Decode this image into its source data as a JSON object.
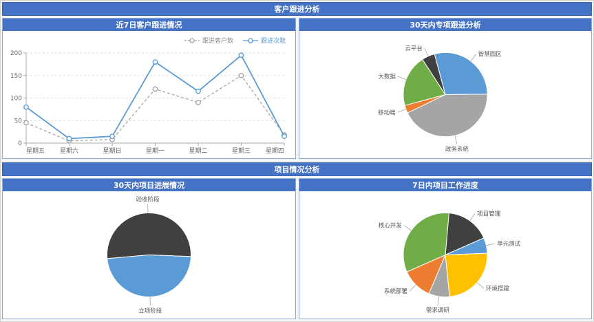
{
  "colors": {
    "accent": "#4472c4",
    "panel_border": "#8fa8d8",
    "axis": "#aaaaaa",
    "grid": "#dddddd",
    "label_text": "#555555"
  },
  "sections": {
    "customer": {
      "title": "客户跟进分析"
    },
    "project": {
      "title": "项目情况分析"
    }
  },
  "panels": {
    "line": {
      "title": "近7日客户跟进情况"
    },
    "special_pie": {
      "title": "30天内专项跟进分析"
    },
    "progress_pie": {
      "title": "30天内项目进展情况"
    },
    "work_pie": {
      "title": "7日内项目工作进度"
    }
  },
  "chart_data": [
    {
      "id": "followup-line",
      "type": "line",
      "title": "近7日客户跟进情况",
      "categories": [
        "星期五",
        "星期六",
        "星期日",
        "星期一",
        "星期二",
        "星期三",
        "星期四"
      ],
      "series": [
        {
          "name": "跟进客户数",
          "values": [
            45,
            5,
            8,
            120,
            90,
            150,
            18
          ],
          "color": "#a5a5a5",
          "dashed": true,
          "label_color": "#8c8c8c"
        },
        {
          "name": "跟进次数",
          "values": [
            80,
            10,
            15,
            180,
            115,
            195,
            15
          ],
          "color": "#5b9bd5",
          "dashed": false,
          "label_color": "#5b9bd5"
        }
      ],
      "xlabel": "",
      "ylabel": "",
      "ylim": [
        0,
        200
      ],
      "yticks": [
        0,
        50,
        100,
        150,
        200
      ],
      "grid": true,
      "legend_position": "top-right"
    },
    {
      "id": "special-pie",
      "type": "pie",
      "title": "30天内专项跟进分析",
      "unit": "percent",
      "start_angle": 345,
      "slices": [
        {
          "label": "智慧园区",
          "value": 29,
          "color": "#5b9bd5"
        },
        {
          "label": "政务系统",
          "value": 43,
          "color": "#a5a5a5"
        },
        {
          "label": "移动端",
          "value": 3,
          "color": "#ed7d31"
        },
        {
          "label": "大数据",
          "value": 20,
          "color": "#70ad47"
        },
        {
          "label": "云平台",
          "value": 5,
          "color": "#404040"
        }
      ]
    },
    {
      "id": "progress-pie",
      "type": "pie",
      "title": "30天内项目进展情况",
      "unit": "percent",
      "start_angle": 265,
      "slices": [
        {
          "label": "验收阶段",
          "value": 52,
          "color": "#404040"
        },
        {
          "label": "立项阶段",
          "value": 48,
          "color": "#5b9bd5"
        }
      ]
    },
    {
      "id": "work-pie",
      "type": "pie",
      "title": "7日内项目工作进度",
      "unit": "percent",
      "start_angle": 5,
      "slices": [
        {
          "label": "项目管理",
          "value": 17,
          "color": "#404040"
        },
        {
          "label": "单元测试",
          "value": 6,
          "color": "#5b9bd5"
        },
        {
          "label": "环境搭建",
          "value": 24,
          "color": "#ffc000"
        },
        {
          "label": "需求调研",
          "value": 8,
          "color": "#a5a5a5"
        },
        {
          "label": "系统部署",
          "value": 12,
          "color": "#ed7d31"
        },
        {
          "label": "核心开发",
          "value": 33,
          "color": "#70ad47"
        }
      ]
    }
  ]
}
